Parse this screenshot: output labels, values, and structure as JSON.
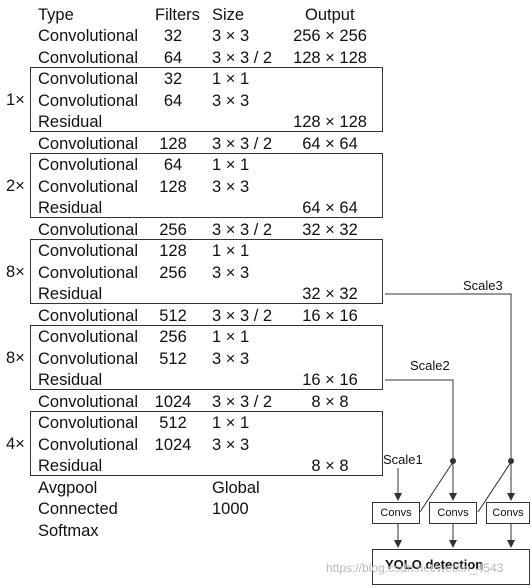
{
  "header": {
    "type": "Type",
    "filters": "Filters",
    "size": "Size",
    "output": "Output"
  },
  "rows": [
    {
      "type": "Convolutional",
      "filters": "32",
      "size": "3 × 3",
      "output": "256 × 256"
    },
    {
      "type": "Convolutional",
      "filters": "64",
      "size": "3 × 3 / 2",
      "output": "128 × 128"
    },
    {
      "type": "Convolutional",
      "filters": "32",
      "size": "1 × 1",
      "output": ""
    },
    {
      "type": "Convolutional",
      "filters": "64",
      "size": "3 × 3",
      "output": ""
    },
    {
      "type": "Residual",
      "filters": "",
      "size": "",
      "output": "128 × 128"
    },
    {
      "type": "Convolutional",
      "filters": "128",
      "size": "3 × 3 / 2",
      "output": "64 × 64"
    },
    {
      "type": "Convolutional",
      "filters": "64",
      "size": "1 × 1",
      "output": ""
    },
    {
      "type": "Convolutional",
      "filters": "128",
      "size": "3 × 3",
      "output": ""
    },
    {
      "type": "Residual",
      "filters": "",
      "size": "",
      "output": "64 × 64"
    },
    {
      "type": "Convolutional",
      "filters": "256",
      "size": "3 × 3 / 2",
      "output": "32 × 32"
    },
    {
      "type": "Convolutional",
      "filters": "128",
      "size": "1 × 1",
      "output": ""
    },
    {
      "type": "Convolutional",
      "filters": "256",
      "size": "3 × 3",
      "output": ""
    },
    {
      "type": "Residual",
      "filters": "",
      "size": "",
      "output": "32 × 32"
    },
    {
      "type": "Convolutional",
      "filters": "512",
      "size": "3 × 3 / 2",
      "output": "16 × 16"
    },
    {
      "type": "Convolutional",
      "filters": "256",
      "size": "1 × 1",
      "output": ""
    },
    {
      "type": "Convolutional",
      "filters": "512",
      "size": "3 × 3",
      "output": ""
    },
    {
      "type": "Residual",
      "filters": "",
      "size": "",
      "output": "16 × 16"
    },
    {
      "type": "Convolutional",
      "filters": "1024",
      "size": "3 × 3 / 2",
      "output": "8 × 8"
    },
    {
      "type": "Convolutional",
      "filters": "512",
      "size": "1 × 1",
      "output": ""
    },
    {
      "type": "Convolutional",
      "filters": "1024",
      "size": "3 × 3",
      "output": ""
    },
    {
      "type": "Residual",
      "filters": "",
      "size": "",
      "output": "8 × 8"
    },
    {
      "type": "Avgpool",
      "filters": "",
      "size": "Global",
      "output": ""
    },
    {
      "type": "Connected",
      "filters": "",
      "size": "1000",
      "output": ""
    },
    {
      "type": "Softmax",
      "filters": "",
      "size": "",
      "output": ""
    }
  ],
  "blocks": [
    "1×",
    "2×",
    "8×",
    "8×",
    "4×"
  ],
  "scales": [
    "Scale1",
    "Scale2",
    "Scale3"
  ],
  "convs_label": "Convs",
  "yolo_label": "YOLO detection",
  "watermark": "https://blog.csdn.net/weixin_4543"
}
